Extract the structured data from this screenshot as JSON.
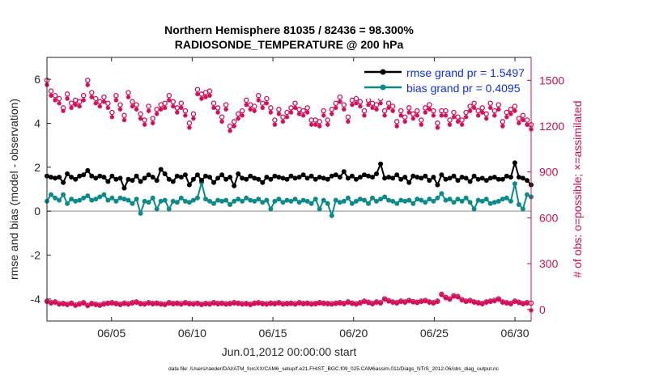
{
  "chart_data": {
    "type": "line",
    "title_line1": "Northern Hemisphere 81035 / 82436 = 98.300%",
    "title_line2": "RADIOSONDE_TEMPERATURE @ 200 hPa",
    "xlabel": "Jun.01,2012 00:00:00 start",
    "ylabel_left": "rmse and bias (model - observation)",
    "ylabel_right": "# of obs: o=possible; ×=assimilated",
    "footnote": "data file: /Users/raeder/DAI/ATM_forcXX/CAM6_setup/f.e21.FHIST_BGC.f09_025.CAM6assim.011/Diags_NTrS_2012-06/obs_diag_output.nc",
    "x_day_range": [
      1,
      31
    ],
    "x_ticks": [
      {
        "day": 5,
        "label": "06/05"
      },
      {
        "day": 10,
        "label": "06/10"
      },
      {
        "day": 15,
        "label": "06/15"
      },
      {
        "day": 20,
        "label": "06/20"
      },
      {
        "day": 25,
        "label": "06/25"
      },
      {
        "day": 30,
        "label": "06/30"
      }
    ],
    "ylim_left": [
      -5,
      7
    ],
    "yticks_left": [
      -4,
      -2,
      0,
      2,
      4,
      6
    ],
    "ylim_right": [
      -75,
      1650
    ],
    "yticks_right": [
      0,
      300,
      600,
      900,
      1200,
      1500
    ],
    "zero_line": 0,
    "legend": [
      {
        "label": "rmse grand pr = 1.5497",
        "color": "#000000"
      },
      {
        "label": "bias grand pr = 0.4095",
        "color": "#0e8a8a"
      }
    ],
    "colors": {
      "rmse": "#000000",
      "bias": "#0e8a8a",
      "obs": "#d0105a",
      "right_axis": "#c8104f",
      "legend_text": "#1030e0",
      "zero_line": "#b0b0b0"
    },
    "series": {
      "rmse": [
        1.6,
        1.55,
        1.5,
        1.55,
        1.3,
        1.7,
        1.55,
        1.45,
        1.6,
        1.65,
        1.85,
        1.6,
        1.5,
        1.6,
        1.55,
        1.35,
        1.6,
        1.45,
        1.5,
        1.05,
        1.45,
        1.4,
        1.6,
        1.35,
        1.5,
        1.65,
        1.55,
        1.4,
        1.9,
        1.7,
        1.45,
        1.35,
        1.6,
        1.55,
        1.65,
        1.2,
        1.45,
        1.65,
        1.4,
        1.6,
        1.55,
        1.3,
        1.5,
        1.65,
        1.45,
        1.55,
        1.15,
        1.7,
        1.5,
        1.45,
        1.6,
        1.5,
        1.45,
        1.3,
        1.55,
        1.45,
        1.6,
        1.55,
        1.5,
        1.45,
        1.6,
        1.5,
        1.55,
        1.65,
        1.5,
        1.6,
        1.45,
        1.55,
        1.5,
        1.45,
        1.6,
        1.65,
        1.55,
        1.8,
        1.5,
        1.6,
        1.45,
        1.55,
        1.65,
        1.6,
        1.55,
        1.7,
        2.15,
        1.5,
        1.55,
        1.5,
        1.65,
        1.45,
        1.55,
        1.3,
        1.6,
        1.55,
        1.5,
        1.6,
        1.4,
        1.55,
        1.2,
        1.65,
        1.45,
        1.5,
        1.6,
        1.4,
        1.55,
        1.5,
        1.35,
        1.6,
        1.45,
        1.5,
        1.4,
        1.5,
        1.55,
        1.45,
        1.45,
        1.6,
        1.55,
        2.2,
        1.55,
        1.5,
        1.4,
        1.2
      ],
      "bias": [
        0.45,
        0.75,
        0.6,
        0.5,
        0.75,
        0.35,
        0.55,
        0.45,
        0.5,
        0.6,
        0.7,
        0.5,
        0.55,
        0.65,
        0.75,
        0.5,
        0.6,
        0.45,
        0.6,
        0.55,
        0.5,
        0.35,
        0.55,
        -0.1,
        0.45,
        0.4,
        0.6,
        0.1,
        0.45,
        0.5,
        0.1,
        0.45,
        0.4,
        0.6,
        0.45,
        0.4,
        0.5,
        0.6,
        1.3,
        0.55,
        0.45,
        0.35,
        0.5,
        0.45,
        0.5,
        0.3,
        0.45,
        0.55,
        0.45,
        0.6,
        0.5,
        0.45,
        0.55,
        0.4,
        0.5,
        0.1,
        0.45,
        0.55,
        0.4,
        0.5,
        0.45,
        0.55,
        0.4,
        0.5,
        0.45,
        0.35,
        0.55,
        0.1,
        0.5,
        0.35,
        -0.2,
        0.5,
        0.4,
        0.45,
        0.6,
        0.35,
        0.45,
        0.55,
        0.5,
        0.35,
        0.6,
        0.45,
        0.55,
        0.65,
        0.5,
        0.45,
        0.35,
        0.5,
        0.45,
        0.5,
        0.35,
        0.55,
        0.5,
        0.4,
        0.55,
        0.45,
        0.6,
        0.8,
        0.5,
        0.55,
        0.4,
        0.55,
        0.45,
        0.6,
        0.4,
        0.1,
        0.5,
        0.45,
        0.55,
        0.35,
        0.4,
        0.45,
        0.55,
        0.6,
        0.45,
        1.25,
        0.3,
        0.1,
        0.75,
        0.65
      ],
      "obs_possible": [
        1500,
        1430,
        1400,
        1380,
        1320,
        1410,
        1350,
        1370,
        1360,
        1400,
        1500,
        1420,
        1380,
        1360,
        1390,
        1350,
        1290,
        1400,
        1340,
        1270,
        1420,
        1360,
        1340,
        1280,
        1240,
        1330,
        1250,
        1310,
        1340,
        1350,
        1400,
        1360,
        1320,
        1350,
        1300,
        1220,
        1280,
        1440,
        1410,
        1420,
        1430,
        1350,
        1320,
        1260,
        1340,
        1200,
        1230,
        1280,
        1300,
        1370,
        1340,
        1330,
        1400,
        1350,
        1380,
        1320,
        1240,
        1310,
        1260,
        1290,
        1320,
        1350,
        1310,
        1300,
        1320,
        1240,
        1240,
        1230,
        1300,
        1240,
        1310,
        1350,
        1390,
        1340,
        1260,
        1370,
        1380,
        1360,
        1300,
        1370,
        1350,
        1340,
        1380,
        1300,
        1350,
        1330,
        1230,
        1300,
        1260,
        1320,
        1280,
        1300,
        1240,
        1320,
        1340,
        1300,
        1220,
        1300,
        1300,
        1240,
        1290,
        1260,
        1240,
        1290,
        1330,
        1350,
        1300,
        1320,
        1280,
        1350,
        1300,
        1340,
        1230,
        1290,
        1310,
        1330,
        1250,
        1270,
        1240,
        1210
      ],
      "obs_assimilated": [
        1470,
        1400,
        1370,
        1350,
        1300,
        1380,
        1320,
        1340,
        1330,
        1370,
        1470,
        1390,
        1350,
        1330,
        1360,
        1320,
        1260,
        1370,
        1310,
        1240,
        1390,
        1330,
        1310,
        1250,
        1210,
        1300,
        1220,
        1280,
        1310,
        1320,
        1370,
        1330,
        1290,
        1320,
        1270,
        1190,
        1250,
        1410,
        1380,
        1390,
        1400,
        1320,
        1290,
        1230,
        1310,
        1170,
        1200,
        1250,
        1270,
        1340,
        1310,
        1300,
        1370,
        1320,
        1350,
        1290,
        1210,
        1280,
        1230,
        1260,
        1290,
        1320,
        1280,
        1270,
        1290,
        1210,
        1210,
        1200,
        1270,
        1210,
        1280,
        1320,
        1360,
        1310,
        1230,
        1340,
        1350,
        1330,
        1270,
        1340,
        1320,
        1310,
        1350,
        1270,
        1320,
        1300,
        1200,
        1270,
        1230,
        1290,
        1250,
        1270,
        1210,
        1290,
        1310,
        1270,
        1190,
        1270,
        1270,
        1210,
        1260,
        1230,
        1210,
        1260,
        1300,
        1320,
        1270,
        1290,
        1250,
        1320,
        1270,
        1310,
        1200,
        1260,
        1280,
        1300,
        1220,
        1240,
        1210,
        1180
      ],
      "obs_low_possible": [
        55,
        45,
        50,
        38,
        40,
        35,
        42,
        30,
        38,
        45,
        28,
        40,
        35,
        30,
        38,
        42,
        45,
        40,
        35,
        42,
        38,
        45,
        50,
        40,
        38,
        45,
        40,
        42,
        38,
        35,
        45,
        40,
        42,
        38,
        45,
        40,
        38,
        42,
        35,
        40,
        38,
        45,
        40,
        42,
        38,
        40,
        45,
        42,
        38,
        40,
        35,
        42,
        45,
        40,
        38,
        42,
        40,
        45,
        38,
        40,
        42,
        38,
        45,
        40,
        42,
        38,
        40,
        45,
        42,
        40,
        38,
        42,
        45,
        40,
        50,
        42,
        38,
        45,
        55,
        48,
        40,
        50,
        45,
        70,
        58,
        50,
        45,
        55,
        50,
        60,
        52,
        48,
        55,
        60,
        50,
        45,
        55,
        100,
        80,
        70,
        90,
        85,
        65,
        55,
        60,
        50,
        45,
        40,
        50,
        55,
        60,
        70,
        50,
        45,
        40,
        55,
        48,
        40,
        45,
        42
      ],
      "obs_low_assimilated": [
        50,
        40,
        45,
        33,
        35,
        30,
        37,
        25,
        33,
        40,
        23,
        35,
        30,
        25,
        33,
        37,
        40,
        35,
        30,
        37,
        33,
        40,
        45,
        35,
        33,
        40,
        35,
        37,
        33,
        30,
        40,
        35,
        37,
        33,
        40,
        35,
        33,
        37,
        30,
        35,
        33,
        40,
        35,
        37,
        33,
        35,
        40,
        37,
        33,
        35,
        30,
        37,
        40,
        35,
        33,
        37,
        35,
        40,
        33,
        35,
        37,
        33,
        40,
        35,
        37,
        33,
        35,
        40,
        37,
        35,
        33,
        37,
        40,
        35,
        45,
        37,
        33,
        40,
        50,
        43,
        35,
        45,
        40,
        65,
        53,
        45,
        40,
        50,
        45,
        55,
        47,
        43,
        50,
        55,
        45,
        40,
        50,
        95,
        75,
        65,
        85,
        80,
        60,
        50,
        55,
        45,
        40,
        35,
        45,
        50,
        55,
        65,
        45,
        40,
        35,
        50,
        43,
        35,
        40,
        -5
      ]
    }
  }
}
